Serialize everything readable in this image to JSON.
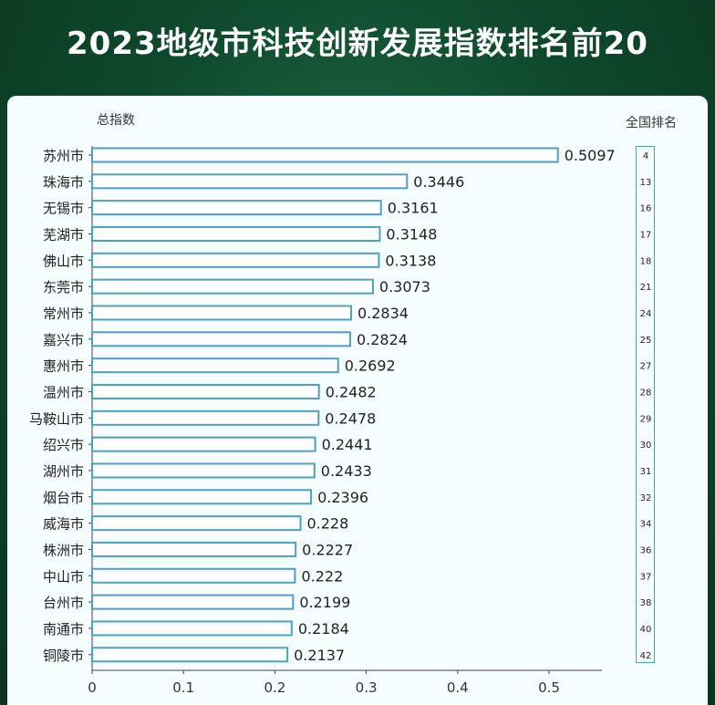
{
  "title": "2023地级市科技创新发展指数排名前20",
  "chart_data": {
    "type": "bar",
    "orientation": "horizontal",
    "title": "2023地级市科技创新发展指数排名前20",
    "value_axis_label": "总指数",
    "rank_column_label": "全国排名",
    "xlim": [
      0,
      0.55
    ],
    "xticks": [
      0,
      0.1,
      0.2,
      0.3,
      0.4,
      0.5
    ],
    "bar_color": "#4ea0c0",
    "grid": false,
    "categories": [
      "苏州市",
      "珠海市",
      "无锡市",
      "芜湖市",
      "佛山市",
      "东莞市",
      "常州市",
      "嘉兴市",
      "惠州市",
      "温州市",
      "马鞍山市",
      "绍兴市",
      "湖州市",
      "烟台市",
      "威海市",
      "株洲市",
      "中山市",
      "台州市",
      "南通市",
      "铜陵市"
    ],
    "values": [
      0.5097,
      0.3446,
      0.3161,
      0.3148,
      0.3138,
      0.3073,
      0.2834,
      0.2824,
      0.2692,
      0.2482,
      0.2478,
      0.2441,
      0.2433,
      0.2396,
      0.228,
      0.2227,
      0.222,
      0.2199,
      0.2184,
      0.2137
    ],
    "value_labels": [
      "0.5097",
      "0.3446",
      "0.3161",
      "0.3148",
      "0.3138",
      "0.3073",
      "0.2834",
      "0.2824",
      "0.2692",
      "0.2482",
      "0.2478",
      "0.2441",
      "0.2433",
      "0.2396",
      "0.228",
      "0.2227",
      "0.222",
      "0.2199",
      "0.2184",
      "0.2137"
    ],
    "national_ranks": [
      "4",
      "13",
      "16",
      "17",
      "18",
      "21",
      "24",
      "25",
      "27",
      "28",
      "29",
      "30",
      "31",
      "32",
      "34",
      "36",
      "37",
      "38",
      "40",
      "42"
    ]
  }
}
